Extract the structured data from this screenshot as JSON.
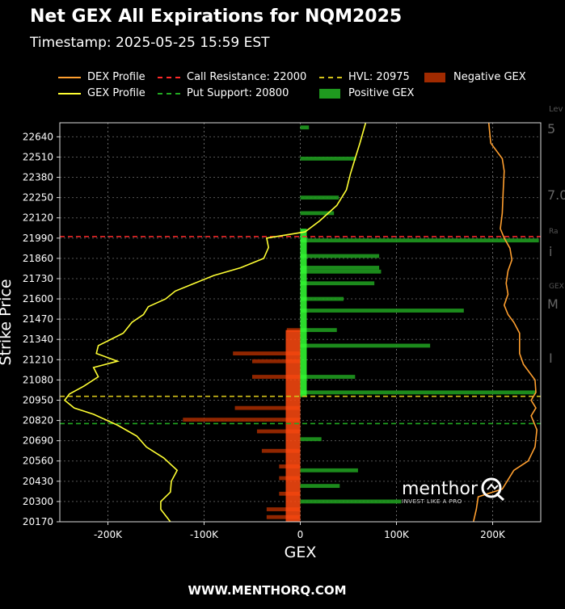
{
  "page": {
    "title": "Net GEX All Expirations for NQM2025",
    "subtitle": "Timestamp: 2025-05-25 15:59 EST",
    "footer": "WWW.MENTHORQ.COM",
    "logo_word": "menthor",
    "logo_tagline": "INVEST LIKE A PRO",
    "right_edge_fragments": [
      "Lev",
      "5",
      "7.0",
      "Ra",
      "i",
      "GEX",
      "M",
      "I"
    ]
  },
  "legend": [
    {
      "label": "DEX Profile",
      "style": "line",
      "color": "#ff9f2f"
    },
    {
      "label": "GEX Profile",
      "style": "line",
      "color": "#ffff33"
    },
    {
      "label": "Call Resistance: 22000",
      "style": "dashed",
      "color": "#ff2a2a"
    },
    {
      "label": "Put Support: 20800",
      "style": "dashed",
      "color": "#22aa22"
    },
    {
      "label": "HVL: 20975",
      "style": "dashed",
      "color": "#d4c21a"
    },
    {
      "label": "Positive GEX",
      "style": "box",
      "color": "#1f9a1f"
    },
    {
      "label": "Negative GEX",
      "style": "box",
      "color": "#a02a00"
    }
  ],
  "chart_data": {
    "type": "bar",
    "orientation": "horizontal",
    "xlabel": "GEX",
    "ylabel": "Strike Price",
    "xlim": [
      -250000,
      250000
    ],
    "ylim": [
      20170,
      22730
    ],
    "x_ticks": [
      -200000,
      -100000,
      0,
      100000,
      200000
    ],
    "x_tick_labels": [
      "-200K",
      "-100K",
      "0",
      "100K",
      "200K"
    ],
    "y_ticks": [
      20170,
      20300,
      20430,
      20560,
      20690,
      20820,
      20950,
      21080,
      21210,
      21340,
      21470,
      21600,
      21730,
      21860,
      21990,
      22120,
      22250,
      22380,
      22510,
      22640
    ],
    "grid": true,
    "reference_lines": [
      {
        "name": "Call Resistance",
        "value": 22000,
        "color": "#ff2a2a"
      },
      {
        "name": "HVL",
        "value": 20975,
        "color": "#d4c21a"
      },
      {
        "name": "Put Support",
        "value": 20800,
        "color": "#22aa22"
      }
    ],
    "bar_height": 25,
    "series": [
      {
        "name": "Positive GEX",
        "color": "#1f9a1f",
        "points": [
          [
            22700,
            9000
          ],
          [
            22500,
            58000
          ],
          [
            22250,
            40000
          ],
          [
            22150,
            35000
          ],
          [
            21975,
            248000
          ],
          [
            21875,
            82000
          ],
          [
            21800,
            82000
          ],
          [
            21775,
            84000
          ],
          [
            21700,
            77000
          ],
          [
            21600,
            45000
          ],
          [
            21525,
            170000
          ],
          [
            21400,
            38000
          ],
          [
            21300,
            135000
          ],
          [
            21100,
            57000
          ],
          [
            21000,
            245000
          ],
          [
            20700,
            22000
          ],
          [
            20500,
            60000
          ],
          [
            20400,
            41000
          ],
          [
            20300,
            105000
          ]
        ]
      },
      {
        "name": "Negative GEX",
        "color": "#a02a00",
        "points": [
          [
            21400,
            -14000
          ],
          [
            21250,
            -70000
          ],
          [
            21200,
            -50000
          ],
          [
            21100,
            -50000
          ],
          [
            20900,
            -68000
          ],
          [
            20825,
            -122000
          ],
          [
            20750,
            -45000
          ],
          [
            20625,
            -40000
          ],
          [
            20525,
            -22000
          ],
          [
            20450,
            -22000
          ],
          [
            20350,
            -22000
          ],
          [
            20250,
            -35000
          ],
          [
            20200,
            -35000
          ]
        ]
      }
    ],
    "dex_profile": [
      [
        22730,
        196000
      ],
      [
        22600,
        198000
      ],
      [
        22500,
        210000
      ],
      [
        22420,
        212000
      ],
      [
        22300,
        211000
      ],
      [
        22150,
        210000
      ],
      [
        22050,
        208000
      ],
      [
        21990,
        212000
      ],
      [
        21925,
        218000
      ],
      [
        21850,
        220000
      ],
      [
        21780,
        216000
      ],
      [
        21700,
        214000
      ],
      [
        21630,
        216000
      ],
      [
        21560,
        212000
      ],
      [
        21500,
        216000
      ],
      [
        21450,
        222000
      ],
      [
        21380,
        228000
      ],
      [
        21300,
        228000
      ],
      [
        21250,
        228000
      ],
      [
        21180,
        232000
      ],
      [
        21080,
        244000
      ],
      [
        21000,
        245000
      ],
      [
        20950,
        240000
      ],
      [
        20900,
        245000
      ],
      [
        20850,
        240000
      ],
      [
        20760,
        246000
      ],
      [
        20650,
        244000
      ],
      [
        20560,
        237000
      ],
      [
        20500,
        222000
      ],
      [
        20430,
        215000
      ],
      [
        20380,
        210000
      ],
      [
        20330,
        185000
      ],
      [
        20250,
        183000
      ],
      [
        20170,
        180000
      ]
    ],
    "gex_profile": [
      [
        22730,
        68000
      ],
      [
        22600,
        62000
      ],
      [
        22500,
        57000
      ],
      [
        22400,
        52000
      ],
      [
        22300,
        48000
      ],
      [
        22200,
        38000
      ],
      [
        22100,
        20000
      ],
      [
        22030,
        5000
      ],
      [
        21990,
        -35000
      ],
      [
        21930,
        -33000
      ],
      [
        21860,
        -38000
      ],
      [
        21800,
        -62000
      ],
      [
        21750,
        -90000
      ],
      [
        21700,
        -110000
      ],
      [
        21650,
        -130000
      ],
      [
        21600,
        -140000
      ],
      [
        21550,
        -158000
      ],
      [
        21500,
        -163000
      ],
      [
        21450,
        -175000
      ],
      [
        21380,
        -184000
      ],
      [
        21300,
        -210000
      ],
      [
        21250,
        -212000
      ],
      [
        21200,
        -190000
      ],
      [
        21160,
        -215000
      ],
      [
        21100,
        -210000
      ],
      [
        21040,
        -225000
      ],
      [
        20990,
        -240000
      ],
      [
        20950,
        -245000
      ],
      [
        20900,
        -235000
      ],
      [
        20860,
        -215000
      ],
      [
        20790,
        -190000
      ],
      [
        20720,
        -170000
      ],
      [
        20650,
        -160000
      ],
      [
        20580,
        -142000
      ],
      [
        20500,
        -128000
      ],
      [
        20430,
        -134000
      ],
      [
        20360,
        -135000
      ],
      [
        20300,
        -145000
      ],
      [
        20250,
        -145000
      ],
      [
        20170,
        -135000
      ]
    ]
  }
}
